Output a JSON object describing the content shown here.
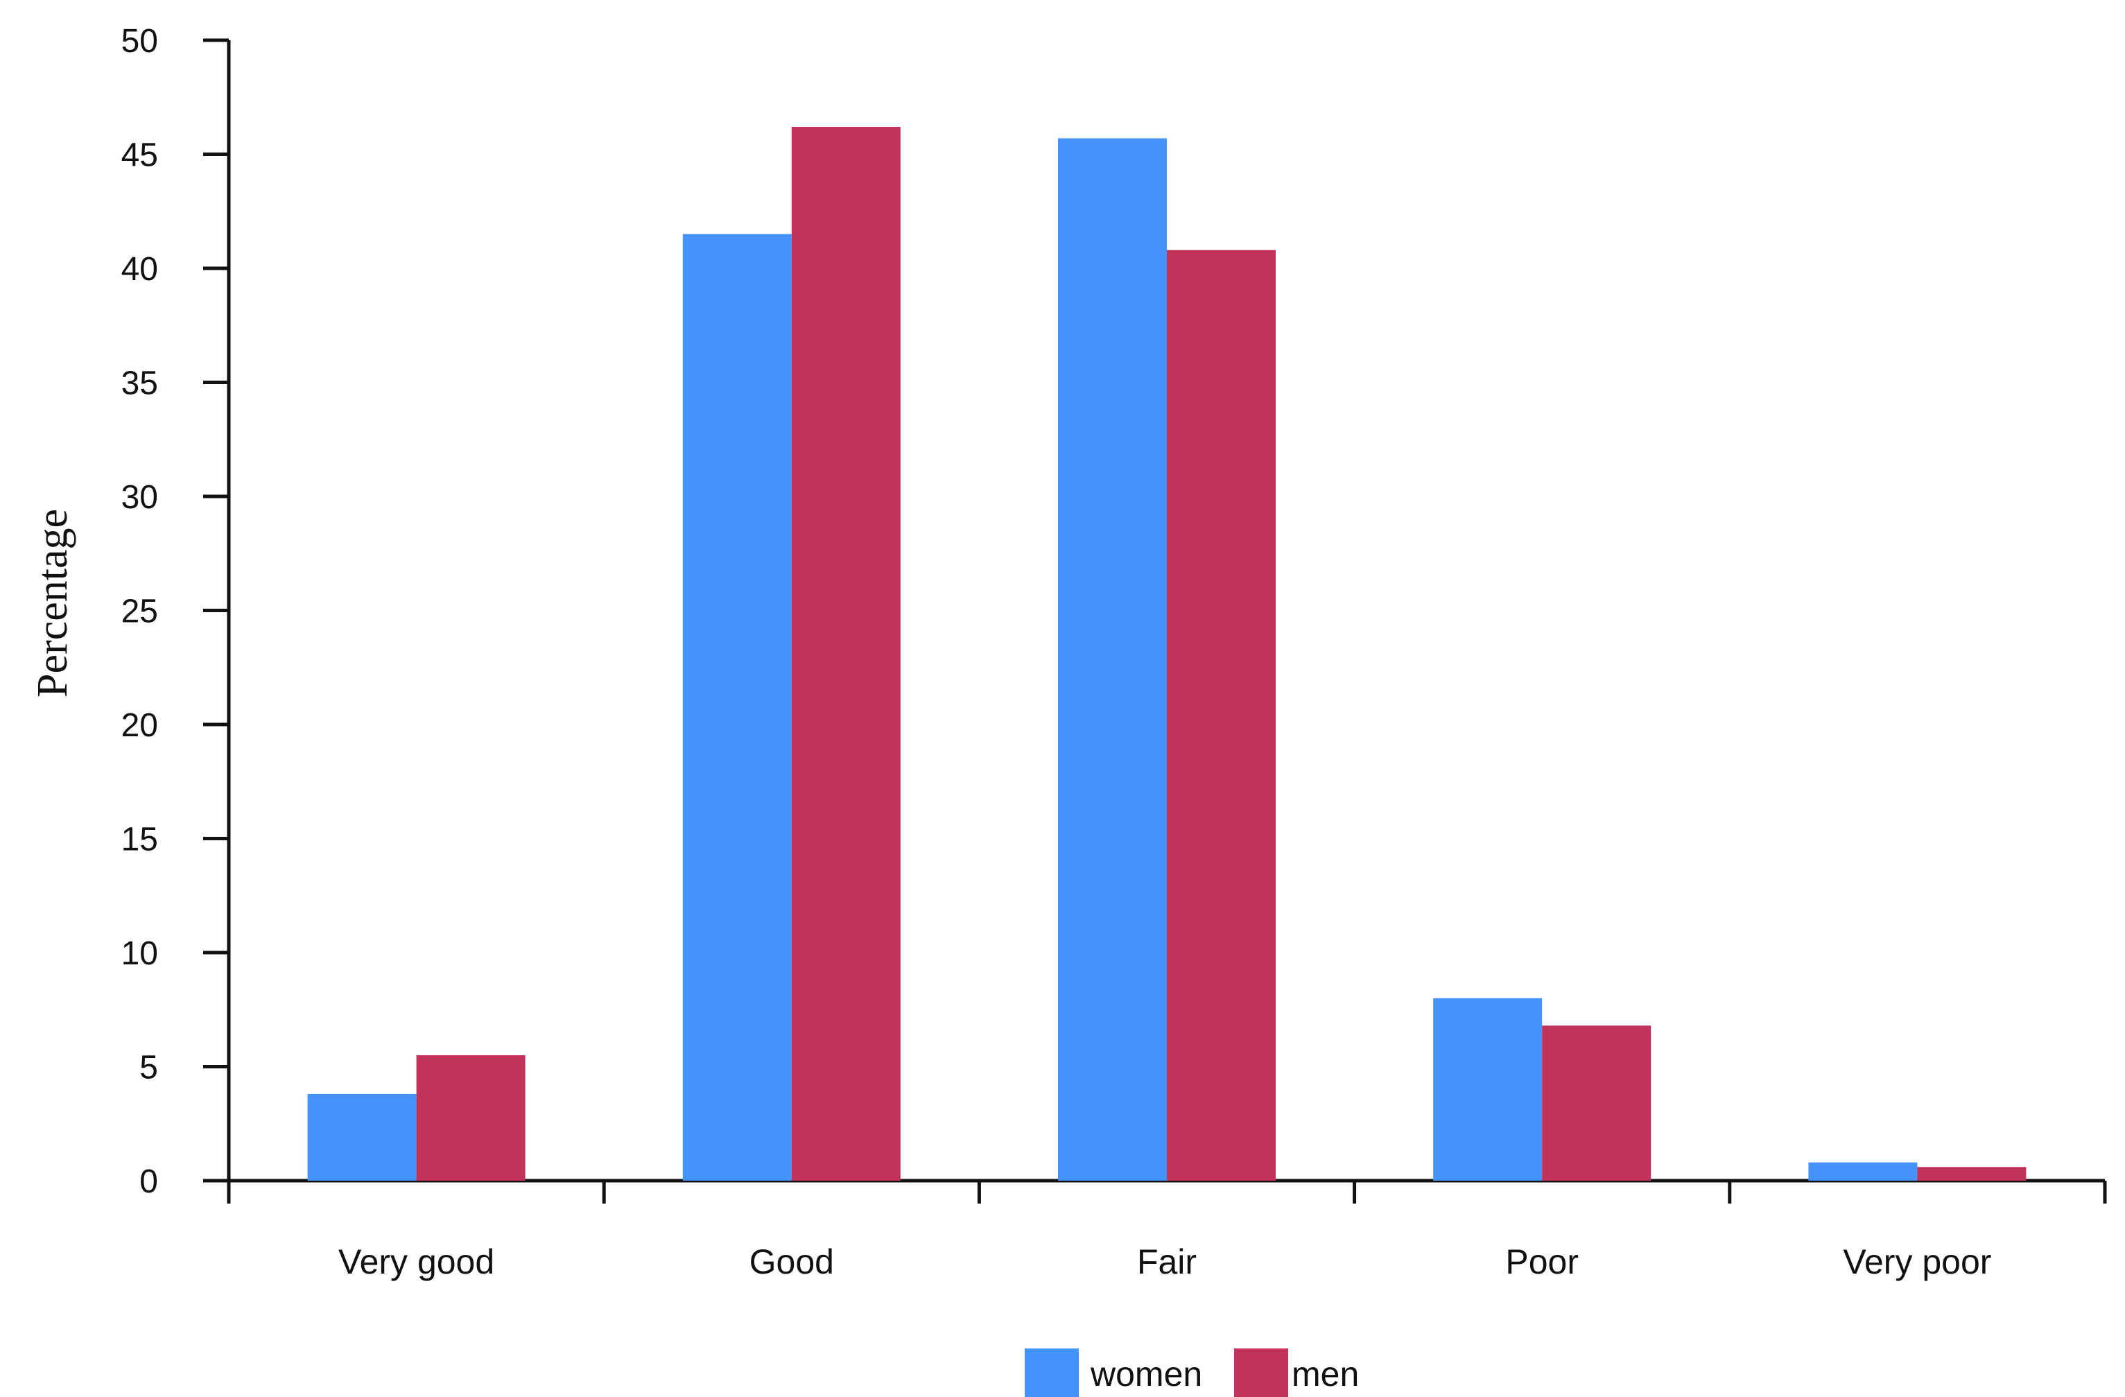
{
  "chart_data": {
    "type": "bar",
    "title": "",
    "xlabel": "",
    "ylabel": "Percentage",
    "ylim": [
      0,
      50
    ],
    "yticks": [
      0,
      5,
      10,
      15,
      20,
      25,
      30,
      35,
      40,
      45,
      50
    ],
    "categories": [
      "Very good",
      "Good",
      "Fair",
      "Poor",
      "Very poor"
    ],
    "series": [
      {
        "name": "women",
        "color": "#4692fc",
        "values": [
          3.8,
          41.5,
          45.7,
          8.0,
          0.8
        ]
      },
      {
        "name": "men",
        "color": "#c2335b",
        "values": [
          5.5,
          46.2,
          40.8,
          6.8,
          0.6
        ]
      }
    ],
    "grid": false,
    "legend_position": "bottom-center"
  }
}
